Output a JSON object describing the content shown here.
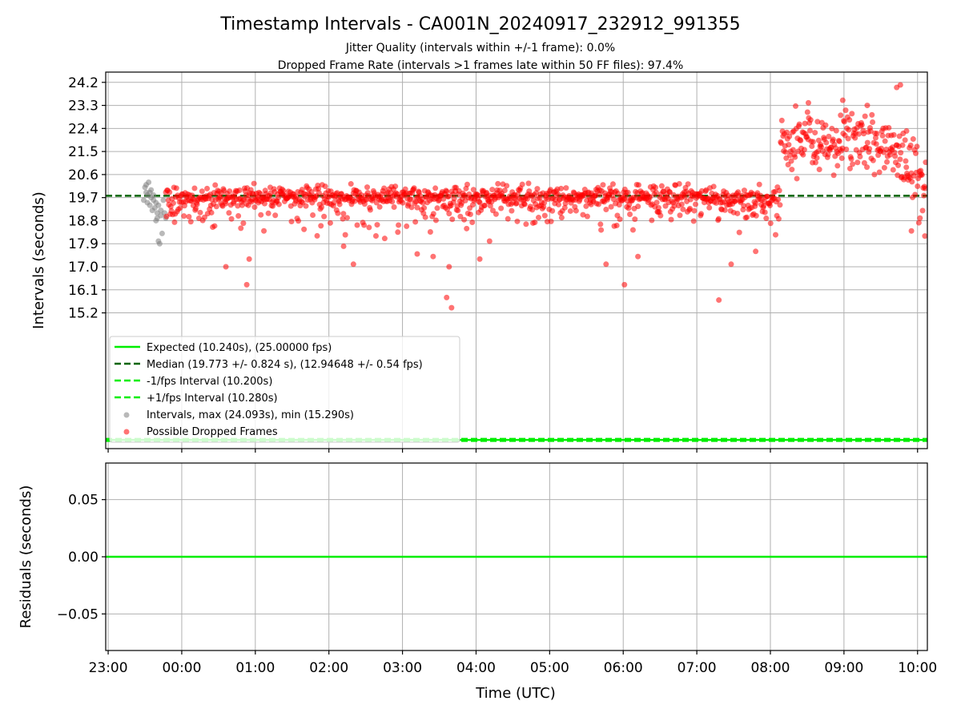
{
  "title": "Timestamp Intervals - CA001N_20240917_232912_991355",
  "subtitle_1": "Jitter Quality (intervals within +/-1 frame): 0.0%",
  "subtitle_2": "Dropped Frame Rate (intervals >1 frames late within 50 FF files): 97.4%",
  "colors": {
    "expected": "#00ee00",
    "median": "#006400",
    "interval_band": "#00ee00",
    "intervals": "#808080",
    "dropped": "#ff0000",
    "grid": "#b0b0b0"
  },
  "chart_data": [
    {
      "type": "scatter",
      "ylabel": "Intervals (seconds)",
      "xlabel": "",
      "x_unit": "hours (UTC)",
      "xlim": [
        "22:58",
        "10:08"
      ],
      "ylim": [
        9.9,
        24.6
      ],
      "x_ticks": [
        "23:00",
        "00:00",
        "01:00",
        "02:00",
        "03:00",
        "04:00",
        "05:00",
        "06:00",
        "07:00",
        "08:00",
        "09:00",
        "10:00"
      ],
      "y_ticks": [
        15.2,
        16.1,
        17.0,
        17.9,
        18.8,
        19.7,
        20.6,
        21.5,
        22.4,
        23.3,
        24.2
      ],
      "grid": true,
      "legend_position": "lower-left",
      "lines": [
        {
          "name": "Expected (10.240s), (25.00000 fps)",
          "y": 10.24,
          "style": "solid",
          "color_key": "expected"
        },
        {
          "name": "Median (19.773 +/- 0.824 s), (12.94648 +/- 0.54 fps)",
          "y": 19.773,
          "style": "dashed",
          "color_key": "median"
        },
        {
          "name": "-1/fps Interval (10.200s)",
          "y": 10.2,
          "style": "dashed",
          "color_key": "interval_band"
        },
        {
          "name": "+1/fps Interval (10.280s)",
          "y": 10.28,
          "style": "dashed",
          "color_key": "interval_band"
        }
      ],
      "series": [
        {
          "name": "Intervals, max (24.093s), min (15.290s)",
          "marker": "circle",
          "color_key": "intervals",
          "points": [
            [
              "23:29",
              19.6
            ],
            [
              "23:30",
              20.1
            ],
            [
              "23:31",
              19.9
            ],
            [
              "23:31",
              20.2
            ],
            [
              "23:32",
              19.5
            ],
            [
              "23:32",
              19.8
            ],
            [
              "23:33",
              20.3
            ],
            [
              "23:34",
              19.4
            ],
            [
              "23:34",
              19.9
            ],
            [
              "23:35",
              20.0
            ],
            [
              "23:35",
              19.7
            ],
            [
              "23:36",
              19.2
            ],
            [
              "23:37",
              19.6
            ],
            [
              "23:37",
              19.8
            ],
            [
              "23:38",
              19.3
            ],
            [
              "23:39",
              19.5
            ],
            [
              "23:39",
              18.8
            ],
            [
              "23:40",
              19.1
            ],
            [
              "23:40",
              18.9
            ],
            [
              "23:41",
              18.0
            ],
            [
              "23:41",
              19.4
            ],
            [
              "23:42",
              17.9
            ],
            [
              "23:43",
              19.2
            ],
            [
              "23:43",
              19.0
            ],
            [
              "23:44",
              18.3
            ],
            [
              "23:45",
              19.6
            ],
            [
              "23:46",
              19.1
            ],
            [
              "23:47",
              18.9
            ]
          ]
        },
        {
          "name": "Possible Dropped Frames",
          "marker": "circle",
          "color_key": "dropped",
          "points": [
            [
              "00:36",
              17.0
            ],
            [
              "00:53",
              16.3
            ],
            [
              "00:55",
              17.3
            ],
            [
              "01:07",
              18.4
            ],
            [
              "02:12",
              17.8
            ],
            [
              "02:20",
              17.1
            ],
            [
              "03:12",
              17.5
            ],
            [
              "03:25",
              17.4
            ],
            [
              "03:36",
              15.8
            ],
            [
              "03:40",
              15.4
            ],
            [
              "03:38",
              17.0
            ],
            [
              "04:03",
              17.3
            ],
            [
              "04:11",
              18.0
            ],
            [
              "05:46",
              17.1
            ],
            [
              "06:01",
              16.3
            ],
            [
              "06:12",
              17.4
            ],
            [
              "07:18",
              15.7
            ],
            [
              "07:28",
              17.1
            ],
            [
              "07:48",
              17.6
            ],
            [
              "08:31",
              23.4
            ],
            [
              "08:59",
              23.5
            ],
            [
              "09:19",
              23.3
            ],
            [
              "09:43",
              24.0
            ],
            [
              "09:46",
              24.1
            ],
            [
              "09:51",
              22.3
            ],
            [
              "09:55",
              18.4
            ],
            [
              "10:06",
              18.2
            ],
            [
              "10:02",
              18.9
            ]
          ]
        }
      ]
    },
    {
      "type": "line",
      "ylabel": "Residuals (seconds)",
      "xlabel": "Time (UTC)",
      "xlim": [
        "22:58",
        "10:08"
      ],
      "ylim": [
        -0.082,
        0.082
      ],
      "x_ticks": [
        "23:00",
        "00:00",
        "01:00",
        "02:00",
        "03:00",
        "04:00",
        "05:00",
        "06:00",
        "07:00",
        "08:00",
        "09:00",
        "10:00"
      ],
      "y_ticks": [
        "0.05",
        "0.00",
        "−0.05"
      ],
      "y_tick_values": [
        0.05,
        0.0,
        -0.05
      ],
      "grid": true,
      "series": [
        {
          "name": "",
          "y": 0.0,
          "color_key": "expected"
        }
      ]
    }
  ]
}
